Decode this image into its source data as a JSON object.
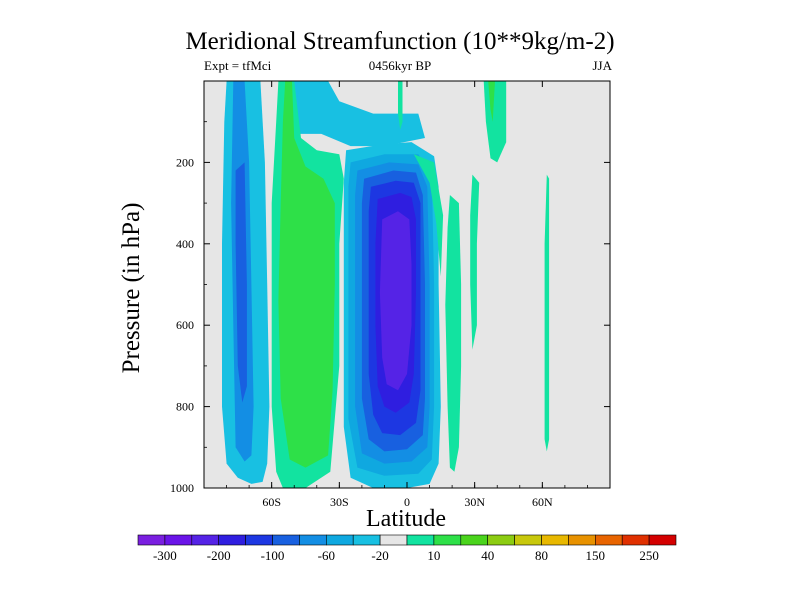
{
  "chart_data": {
    "type": "contour",
    "title": "Meridional Streamfunction (10**9kg/m-2)",
    "subtitle_left": "Expt = tfMci",
    "subtitle_center": "0456kyr BP",
    "subtitle_right": "JJA",
    "xlabel": "Latitude",
    "ylabel": "Pressure (in hPa)",
    "xlim": [
      -90,
      90
    ],
    "ylim": [
      1000,
      0
    ],
    "x_ticks": [
      {
        "value": -60,
        "label": "60S"
      },
      {
        "value": -30,
        "label": "30S"
      },
      {
        "value": 0,
        "label": "0"
      },
      {
        "value": 30,
        "label": "30N"
      },
      {
        "value": 60,
        "label": "60N"
      }
    ],
    "y_ticks": [
      {
        "value": 200,
        "label": "200"
      },
      {
        "value": 400,
        "label": "400"
      },
      {
        "value": 600,
        "label": "600"
      },
      {
        "value": 800,
        "label": "800"
      },
      {
        "value": 1000,
        "label": "1000"
      }
    ],
    "background_color": "#e6e6e6",
    "colorbar": {
      "colors": [
        "#7a1fe0",
        "#6a14e8",
        "#5523e6",
        "#2f1ee0",
        "#1d37e2",
        "#1860e0",
        "#138ee4",
        "#0fa8e0",
        "#18c0e2",
        "#e6e6e6",
        "#12e3a0",
        "#2ee048",
        "#4ad41c",
        "#8ccc12",
        "#c8c80c",
        "#e8b800",
        "#e89200",
        "#e86400",
        "#e03000",
        "#d40000"
      ],
      "labels": [
        {
          "after_box": 1,
          "text": "-300"
        },
        {
          "after_box": 3,
          "text": "-200"
        },
        {
          "after_box": 5,
          "text": "-100"
        },
        {
          "after_box": 7,
          "text": "-60"
        },
        {
          "after_box": 9,
          "text": "-20"
        },
        {
          "after_box": 11,
          "text": "10"
        },
        {
          "after_box": 13,
          "text": "40"
        },
        {
          "after_box": 15,
          "text": "80"
        },
        {
          "after_box": 17,
          "text": "150"
        },
        {
          "after_box": 19,
          "text": "250"
        }
      ]
    },
    "regions": [
      {
        "name": "sh-polar-cell-outer",
        "level": "-20 to -60",
        "color": "#18c0e2",
        "outline": [
          [
            -80,
            0
          ],
          [
            -65,
            0
          ],
          [
            -63,
            200
          ],
          [
            -62,
            500
          ],
          [
            -61,
            800
          ],
          [
            -62,
            940
          ],
          [
            -64,
            985
          ],
          [
            -69,
            990
          ],
          [
            -75,
            975
          ],
          [
            -80,
            940
          ],
          [
            -82,
            800
          ],
          [
            -82,
            400
          ],
          [
            -81,
            100
          ]
        ]
      },
      {
        "name": "sh-polar-cell-mid",
        "level": "-60 to -100",
        "color": "#138ee4",
        "outline": [
          [
            -77,
            0
          ],
          [
            -72,
            0
          ],
          [
            -70,
            200
          ],
          [
            -69,
            500
          ],
          [
            -68,
            800
          ],
          [
            -69,
            920
          ],
          [
            -72,
            935
          ],
          [
            -76,
            900
          ],
          [
            -77,
            600
          ],
          [
            -78,
            300
          ]
        ]
      },
      {
        "name": "sh-polar-cell-core",
        "level": "-100 to -200",
        "color": "#1860e0",
        "outline": [
          [
            -76,
            220
          ],
          [
            -72,
            200
          ],
          [
            -71,
            500
          ],
          [
            -71,
            750
          ],
          [
            -73,
            790
          ],
          [
            -75,
            700
          ],
          [
            -76,
            400
          ]
        ]
      },
      {
        "name": "sh-ferrel-top-band",
        "level": "-20 to 10",
        "color": "#18c0e2",
        "outline": [
          [
            -57,
            0
          ],
          [
            -35,
            0
          ],
          [
            -30,
            50
          ],
          [
            -15,
            80
          ],
          [
            5,
            80
          ],
          [
            8,
            140
          ],
          [
            -10,
            160
          ],
          [
            -25,
            160
          ],
          [
            -38,
            130
          ],
          [
            -48,
            130
          ],
          [
            -52,
            80
          ]
        ]
      },
      {
        "name": "sh-ferrel-cell-band",
        "level": "10 to 40",
        "color": "#12e3a0",
        "outline": [
          [
            -57,
            0
          ],
          [
            -50,
            0
          ],
          [
            -47,
            140
          ],
          [
            -40,
            170
          ],
          [
            -30,
            180
          ],
          [
            -28,
            240
          ],
          [
            -30,
            400
          ],
          [
            -30,
            700
          ],
          [
            -34,
            960
          ],
          [
            -45,
            1000
          ],
          [
            -55,
            1000
          ],
          [
            -58,
            960
          ],
          [
            -60,
            800
          ],
          [
            -60,
            600
          ],
          [
            -60,
            300
          ],
          [
            -58,
            100
          ]
        ]
      },
      {
        "name": "sh-ferrel-cell-core",
        "level": "40 to 60",
        "color": "#2ee048",
        "outline": [
          [
            -54,
            0
          ],
          [
            -51,
            0
          ],
          [
            -50,
            140
          ],
          [
            -45,
            210
          ],
          [
            -37,
            240
          ],
          [
            -32,
            300
          ],
          [
            -32,
            500
          ],
          [
            -33,
            760
          ],
          [
            -35,
            920
          ],
          [
            -45,
            950
          ],
          [
            -52,
            930
          ],
          [
            -56,
            780
          ],
          [
            -57,
            540
          ],
          [
            -56,
            300
          ],
          [
            -55,
            100
          ]
        ]
      },
      {
        "name": "hadley-cell-outer",
        "level": "-20 to 10",
        "color": "#18c0e2",
        "outline": [
          [
            -27,
            170
          ],
          [
            -10,
            155
          ],
          [
            2,
            150
          ],
          [
            12,
            185
          ],
          [
            14,
            260
          ],
          [
            14,
            500
          ],
          [
            15,
            800
          ],
          [
            14,
            940
          ],
          [
            10,
            990
          ],
          [
            0,
            1000
          ],
          [
            -15,
            1000
          ],
          [
            -25,
            975
          ],
          [
            -28,
            850
          ],
          [
            -28,
            500
          ],
          [
            -28,
            250
          ]
        ]
      },
      {
        "name": "hadley-cell-ring-1",
        "level": "-60 to -20",
        "color": "#0fa8e0",
        "outline": [
          [
            -25,
            200
          ],
          [
            -10,
            180
          ],
          [
            5,
            180
          ],
          [
            11,
            230
          ],
          [
            12,
            500
          ],
          [
            12,
            800
          ],
          [
            11,
            930
          ],
          [
            5,
            965
          ],
          [
            -10,
            970
          ],
          [
            -22,
            950
          ],
          [
            -26,
            830
          ],
          [
            -26,
            500
          ],
          [
            -26,
            260
          ]
        ]
      },
      {
        "name": "hadley-cell-ring-2",
        "level": "-100 to -60",
        "color": "#138ee4",
        "outline": [
          [
            -22,
            220
          ],
          [
            -8,
            200
          ],
          [
            5,
            205
          ],
          [
            9,
            260
          ],
          [
            10,
            500
          ],
          [
            10,
            800
          ],
          [
            9,
            900
          ],
          [
            2,
            935
          ],
          [
            -10,
            940
          ],
          [
            -20,
            915
          ],
          [
            -23,
            800
          ],
          [
            -23,
            500
          ],
          [
            -23,
            280
          ]
        ]
      },
      {
        "name": "hadley-cell-ring-3",
        "level": "-150 to -100",
        "color": "#1860e0",
        "outline": [
          [
            -19,
            240
          ],
          [
            -6,
            220
          ],
          [
            4,
            225
          ],
          [
            7,
            280
          ],
          [
            8,
            500
          ],
          [
            8,
            780
          ],
          [
            7,
            870
          ],
          [
            0,
            905
          ],
          [
            -10,
            910
          ],
          [
            -17,
            880
          ],
          [
            -20,
            780
          ],
          [
            -20,
            500
          ],
          [
            -20,
            300
          ]
        ]
      },
      {
        "name": "hadley-cell-ring-4",
        "level": "-200 to -150",
        "color": "#1d37e2",
        "outline": [
          [
            -16,
            260
          ],
          [
            -5,
            245
          ],
          [
            3,
            250
          ],
          [
            6,
            300
          ],
          [
            6,
            500
          ],
          [
            6,
            760
          ],
          [
            4,
            840
          ],
          [
            -3,
            870
          ],
          [
            -11,
            865
          ],
          [
            -15,
            820
          ],
          [
            -17,
            720
          ],
          [
            -17,
            500
          ],
          [
            -17,
            320
          ]
        ]
      },
      {
        "name": "hadley-cell-ring-5",
        "level": "-250 to -200",
        "color": "#2f1ee0",
        "outline": [
          [
            -13,
            290
          ],
          [
            -3,
            275
          ],
          [
            2,
            285
          ],
          [
            4,
            340
          ],
          [
            4,
            520
          ],
          [
            3,
            720
          ],
          [
            1,
            790
          ],
          [
            -5,
            815
          ],
          [
            -10,
            800
          ],
          [
            -13,
            750
          ],
          [
            -14,
            600
          ],
          [
            -14,
            400
          ]
        ]
      },
      {
        "name": "hadley-cell-core",
        "level": "-300 to -250",
        "color": "#5523e6",
        "outline": [
          [
            -11,
            340
          ],
          [
            -4,
            320
          ],
          [
            1,
            340
          ],
          [
            2,
            450
          ],
          [
            2,
            600
          ],
          [
            0,
            720
          ],
          [
            -4,
            760
          ],
          [
            -9,
            745
          ],
          [
            -11,
            680
          ],
          [
            -12,
            520
          ]
        ]
      },
      {
        "name": "nh-upper-band",
        "level": "10 to 40",
        "color": "#12e3a0",
        "outline": [
          [
            3,
            180
          ],
          [
            12,
            200
          ],
          [
            16,
            330
          ],
          [
            15,
            480
          ],
          [
            13,
            350
          ],
          [
            10,
            250
          ]
        ]
      },
      {
        "name": "nh-streak-1",
        "level": "10 to 40",
        "color": "#12e3a0",
        "outline": [
          [
            19,
            280
          ],
          [
            23,
            300
          ],
          [
            24,
            500
          ],
          [
            24,
            700
          ],
          [
            23,
            900
          ],
          [
            21,
            960
          ],
          [
            19,
            950
          ],
          [
            18,
            800
          ],
          [
            17,
            550
          ],
          [
            18,
            360
          ]
        ]
      },
      {
        "name": "nh-streak-2",
        "level": "10 to 40",
        "color": "#12e3a0",
        "outline": [
          [
            29,
            230
          ],
          [
            32,
            250
          ],
          [
            31,
            400
          ],
          [
            31,
            600
          ],
          [
            29,
            660
          ],
          [
            28,
            500
          ],
          [
            28,
            330
          ]
        ]
      },
      {
        "name": "nh-streak-3",
        "level": "10 to 40",
        "color": "#12e3a0",
        "outline": [
          [
            34,
            0
          ],
          [
            44,
            0
          ],
          [
            44,
            150
          ],
          [
            40,
            200
          ],
          [
            37,
            190
          ],
          [
            35,
            100
          ]
        ]
      },
      {
        "name": "nh-streak-3-core",
        "level": "40 to 60",
        "color": "#2ee048",
        "outline": [
          [
            36,
            0
          ],
          [
            39,
            0
          ],
          [
            38,
            100
          ],
          [
            37,
            70
          ]
        ]
      },
      {
        "name": "nh-streak-top",
        "level": "10 to 40",
        "color": "#12e3a0",
        "outline": [
          [
            -4,
            0
          ],
          [
            -2,
            0
          ],
          [
            -2,
            100
          ],
          [
            -3,
            120
          ],
          [
            -4,
            80
          ]
        ]
      },
      {
        "name": "nh-streak-polar",
        "level": "10 to 40",
        "color": "#12e3a0",
        "outline": [
          [
            62,
            230
          ],
          [
            63,
            240
          ],
          [
            63,
            500
          ],
          [
            63,
            700
          ],
          [
            63,
            880
          ],
          [
            62,
            910
          ],
          [
            61,
            880
          ],
          [
            61,
            600
          ],
          [
            61,
            400
          ]
        ]
      }
    ]
  }
}
